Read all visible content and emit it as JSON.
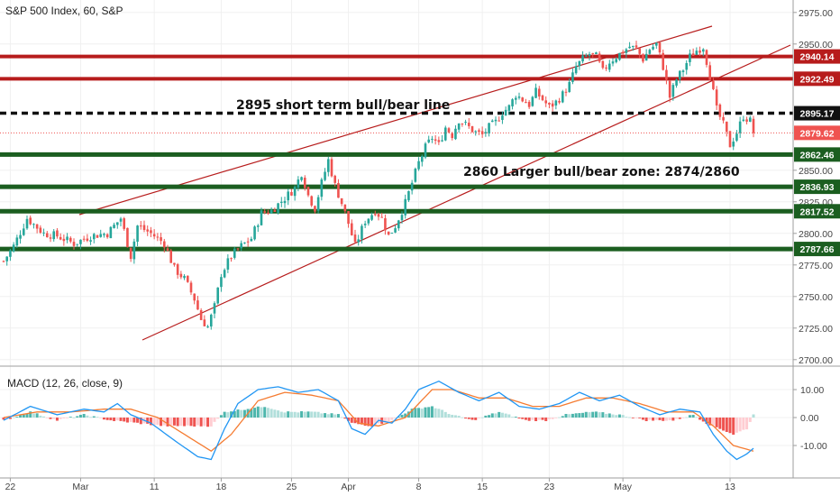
{
  "title": "S&P 500 Index, 60, S&P",
  "colors": {
    "up": "#26a69a",
    "down": "#ef5350",
    "resistance": "#b71c1c",
    "support": "#1b5e20",
    "channel": "#b71c1c",
    "macd_line": "#2196f3",
    "signal_line": "#f57c32",
    "hist_up": "#4db6ac",
    "hist_up_light": "#b2dfdb",
    "hist_down": "#ef5350",
    "hist_down_light": "#ffcdd2"
  },
  "chart_data": [
    {
      "type": "candlestick",
      "title": "S&P 500 Index, 60, S&P",
      "ylim": [
        2700,
        2980
      ],
      "y_ticks": [
        "2975.00",
        "2950.00",
        "2850.00",
        "2825.00",
        "2800.00",
        "2775.00",
        "2750.00",
        "2725.00",
        "2700.00"
      ],
      "x_tick_labels": [
        "22",
        "Mar",
        "11",
        "18",
        "25",
        "Apr",
        "8",
        "15",
        "23",
        "May",
        "13"
      ],
      "ohlc_path": [
        [
          0,
          2778
        ],
        [
          3,
          2790
        ],
        [
          7,
          2812
        ],
        [
          12,
          2800
        ],
        [
          16,
          2798
        ],
        [
          21,
          2792
        ],
        [
          26,
          2798
        ],
        [
          31,
          2800
        ],
        [
          35,
          2812
        ],
        [
          38,
          2782
        ],
        [
          40,
          2806
        ],
        [
          44,
          2800
        ],
        [
          48,
          2792
        ],
        [
          51,
          2772
        ],
        [
          54,
          2764
        ],
        [
          57,
          2748
        ],
        [
          59,
          2732
        ],
        [
          61,
          2726
        ],
        [
          63,
          2742
        ],
        [
          65,
          2768
        ],
        [
          68,
          2782
        ],
        [
          71,
          2790
        ],
        [
          74,
          2796
        ],
        [
          77,
          2816
        ],
        [
          80,
          2818
        ],
        [
          84,
          2828
        ],
        [
          87,
          2836
        ],
        [
          89,
          2848
        ],
        [
          91,
          2830
        ],
        [
          93,
          2820
        ],
        [
          95,
          2840
        ],
        [
          97,
          2858
        ],
        [
          99,
          2838
        ],
        [
          101,
          2824
        ],
        [
          103,
          2808
        ],
        [
          105,
          2790
        ],
        [
          108,
          2810
        ],
        [
          111,
          2818
        ],
        [
          113,
          2812
        ],
        [
          115,
          2798
        ],
        [
          117,
          2806
        ],
        [
          120,
          2824
        ],
        [
          122,
          2840
        ],
        [
          124,
          2856
        ],
        [
          126,
          2868
        ],
        [
          128,
          2876
        ],
        [
          130,
          2870
        ],
        [
          132,
          2884
        ],
        [
          134,
          2878
        ],
        [
          136,
          2890
        ],
        [
          138,
          2886
        ],
        [
          141,
          2880
        ],
        [
          143,
          2878
        ],
        [
          145,
          2884
        ],
        [
          147,
          2888
        ],
        [
          149,
          2896
        ],
        [
          151,
          2900
        ],
        [
          153,
          2910
        ],
        [
          155,
          2906
        ],
        [
          157,
          2902
        ],
        [
          159,
          2912
        ],
        [
          161,
          2906
        ],
        [
          163,
          2900
        ],
        [
          165,
          2904
        ],
        [
          167,
          2910
        ],
        [
          169,
          2918
        ],
        [
          171,
          2932
        ],
        [
          173,
          2938
        ],
        [
          175,
          2942
        ],
        [
          177,
          2940
        ],
        [
          179,
          2928
        ],
        [
          181,
          2936
        ],
        [
          183,
          2940
        ],
        [
          185,
          2944
        ],
        [
          187,
          2948
        ],
        [
          189,
          2946
        ],
        [
          191,
          2938
        ],
        [
          193,
          2946
        ],
        [
          195,
          2950
        ],
        [
          197,
          2932
        ],
        [
          199,
          2908
        ],
        [
          201,
          2922
        ],
        [
          203,
          2930
        ],
        [
          205,
          2940
        ],
        [
          207,
          2945
        ],
        [
          209,
          2948
        ],
        [
          211,
          2925
        ],
        [
          213,
          2898
        ],
        [
          215,
          2886
        ],
        [
          217,
          2870
        ],
        [
          219,
          2880
        ],
        [
          221,
          2893
        ],
        [
          223,
          2889
        ],
        [
          224,
          2880
        ]
      ],
      "horizontal_levels": [
        {
          "value": 2940.14,
          "label": "2940.14",
          "color": "resistance",
          "style": "solid"
        },
        {
          "value": 2922.49,
          "label": "2922.49",
          "color": "resistance",
          "style": "solid"
        },
        {
          "value": 2895.17,
          "label": "2895.17",
          "color": "black",
          "style": "dashed"
        },
        {
          "value": 2879.62,
          "label": "2879.62",
          "color": "price",
          "style": "dotted"
        },
        {
          "value": 2862.46,
          "label": "2862.46",
          "color": "support",
          "style": "solid"
        },
        {
          "value": 2836.93,
          "label": "2836.93",
          "color": "support",
          "style": "solid"
        },
        {
          "value": 2817.52,
          "label": "2817.52",
          "color": "support",
          "style": "solid"
        },
        {
          "value": 2787.66,
          "label": "2787.66",
          "color": "support",
          "style": "solid"
        }
      ],
      "annotations": [
        "2895 short term bull/bear line",
        "2860 Larger bull/bear zone: 2874/2860"
      ]
    },
    {
      "type": "macd",
      "title": "MACD (12, 26, close, 9)",
      "ylim": [
        -20,
        17
      ],
      "y_ticks": [
        "10.00",
        "0.00",
        "-10.00"
      ],
      "macd_path": [
        [
          0,
          -1
        ],
        [
          8,
          4
        ],
        [
          16,
          1
        ],
        [
          24,
          3
        ],
        [
          30,
          2
        ],
        [
          34,
          5
        ],
        [
          38,
          1
        ],
        [
          44,
          -2
        ],
        [
          52,
          -9
        ],
        [
          58,
          -14
        ],
        [
          62,
          -15
        ],
        [
          66,
          -4
        ],
        [
          70,
          5
        ],
        [
          76,
          10
        ],
        [
          82,
          11
        ],
        [
          88,
          9
        ],
        [
          94,
          10
        ],
        [
          100,
          6
        ],
        [
          104,
          -4
        ],
        [
          108,
          -6
        ],
        [
          112,
          -1
        ],
        [
          116,
          -2
        ],
        [
          120,
          3
        ],
        [
          124,
          10
        ],
        [
          130,
          13
        ],
        [
          136,
          9
        ],
        [
          142,
          6
        ],
        [
          148,
          9
        ],
        [
          154,
          4
        ],
        [
          160,
          3
        ],
        [
          166,
          5
        ],
        [
          172,
          9
        ],
        [
          178,
          6
        ],
        [
          184,
          8
        ],
        [
          190,
          4
        ],
        [
          196,
          1
        ],
        [
          202,
          3
        ],
        [
          208,
          2
        ],
        [
          212,
          -6
        ],
        [
          216,
          -12
        ],
        [
          219,
          -15
        ],
        [
          222,
          -13
        ],
        [
          224,
          -11
        ]
      ],
      "signal_path": [
        [
          0,
          0
        ],
        [
          10,
          2
        ],
        [
          20,
          2
        ],
        [
          30,
          3
        ],
        [
          38,
          3
        ],
        [
          46,
          0
        ],
        [
          54,
          -6
        ],
        [
          62,
          -12
        ],
        [
          68,
          -6
        ],
        [
          76,
          6
        ],
        [
          84,
          9
        ],
        [
          92,
          8
        ],
        [
          100,
          6
        ],
        [
          106,
          -2
        ],
        [
          112,
          -3
        ],
        [
          120,
          0
        ],
        [
          128,
          10
        ],
        [
          134,
          10
        ],
        [
          142,
          7
        ],
        [
          150,
          7
        ],
        [
          158,
          4
        ],
        [
          166,
          4
        ],
        [
          174,
          7
        ],
        [
          182,
          7
        ],
        [
          190,
          5
        ],
        [
          198,
          2
        ],
        [
          206,
          2
        ],
        [
          212,
          -3
        ],
        [
          218,
          -10
        ],
        [
          224,
          -12
        ]
      ],
      "hist_path": [
        [
          0,
          -1
        ],
        [
          8,
          2
        ],
        [
          16,
          -1
        ],
        [
          24,
          1
        ],
        [
          32,
          -1
        ],
        [
          40,
          -2
        ],
        [
          48,
          -3
        ],
        [
          56,
          -3
        ],
        [
          62,
          -3
        ],
        [
          66,
          2
        ],
        [
          72,
          3
        ],
        [
          78,
          4
        ],
        [
          84,
          2
        ],
        [
          92,
          2
        ],
        [
          100,
          1
        ],
        [
          104,
          -2
        ],
        [
          110,
          -3
        ],
        [
          116,
          -1
        ],
        [
          122,
          3
        ],
        [
          128,
          4
        ],
        [
          134,
          1
        ],
        [
          140,
          -1
        ],
        [
          148,
          2
        ],
        [
          156,
          -1
        ],
        [
          162,
          -1
        ],
        [
          168,
          1
        ],
        [
          176,
          2
        ],
        [
          184,
          1
        ],
        [
          192,
          -1
        ],
        [
          200,
          -1
        ],
        [
          206,
          1
        ],
        [
          210,
          -2
        ],
        [
          214,
          -4
        ],
        [
          218,
          -6
        ],
        [
          222,
          -4
        ],
        [
          224,
          1
        ]
      ]
    }
  ]
}
